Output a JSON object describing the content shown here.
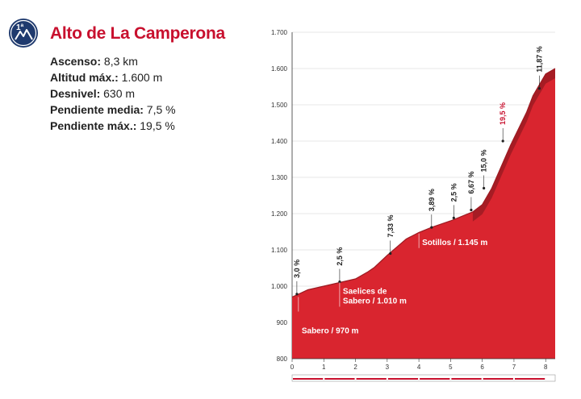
{
  "badge": {
    "text": "1ª",
    "icon": "mountain-icon",
    "color": "#1f3a6e"
  },
  "title": "Alto de La Camperona",
  "stats": [
    {
      "label": "Ascenso:",
      "value": " 8,3 km"
    },
    {
      "label": "Altitud máx.:",
      "value": " 1.600 m"
    },
    {
      "label": "Desnivel:",
      "value": " 630 m"
    },
    {
      "label": "Pendiente media:",
      "value": " 7,5 %"
    },
    {
      "label": "Pendiente máx.:",
      "value": " 19,5 %"
    }
  ],
  "colors": {
    "fill": "#d9252f",
    "dark": "#9c1b22",
    "accent": "#c8102e",
    "text": "#222222"
  },
  "chart_data": {
    "type": "area",
    "x": [
      0,
      0.2,
      0.5,
      1,
      1.5,
      2.0,
      2.4,
      2.6,
      3,
      3.6,
      4.0,
      4.4,
      5.0,
      5.7,
      6.0,
      6.3,
      6.9,
      7.4,
      7.6,
      8.0,
      8.3
    ],
    "y": [
      970,
      978,
      990,
      1000,
      1010,
      1020,
      1040,
      1052,
      1085,
      1130,
      1148,
      1162,
      1180,
      1205,
      1225,
      1270,
      1390,
      1480,
      1525,
      1585,
      1600
    ],
    "ylim": [
      800,
      1700
    ],
    "yticks": [
      "800",
      "900",
      "1.000",
      "1.100",
      "1.200",
      "1.300",
      "1.400",
      "1.500",
      "1.600",
      "1.700"
    ],
    "ytick_values": [
      800,
      900,
      1000,
      1100,
      1200,
      1300,
      1400,
      1500,
      1600,
      1700
    ],
    "xticks": [
      "0",
      "1",
      "2",
      "3",
      "4",
      "5",
      "6",
      "7",
      "8"
    ],
    "xlim": [
      0,
      8.3
    ],
    "grid": true,
    "gradients": [
      {
        "label": "3,0 %",
        "x": 0.15,
        "y": 978,
        "red": false
      },
      {
        "label": "2,5 %",
        "x": 1.5,
        "y": 1012,
        "red": false
      },
      {
        "label": "7,33 %",
        "x": 3.1,
        "y": 1090,
        "red": false
      },
      {
        "label": "3,89 %",
        "x": 4.4,
        "y": 1162,
        "red": false
      },
      {
        "label": "2,5 %",
        "x": 5.1,
        "y": 1188,
        "red": false
      },
      {
        "label": "6,67 %",
        "x": 5.65,
        "y": 1210,
        "red": false
      },
      {
        "label": "15,0 %",
        "x": 6.05,
        "y": 1270,
        "red": false
      },
      {
        "label": "19,5 %",
        "x": 6.65,
        "y": 1400,
        "red": true
      },
      {
        "label": "11,87 %",
        "x": 7.8,
        "y": 1545,
        "red": false
      }
    ],
    "places": [
      {
        "lines": [
          "Sabero / 970 m"
        ],
        "x": 0.2,
        "y": 970
      },
      {
        "lines": [
          "Saelices de",
          "Sabero / 1.010 m"
        ],
        "x": 1.5,
        "y": 1010
      },
      {
        "lines": [
          "Sotillos / 1.145 m"
        ],
        "x": 4.0,
        "y": 1145
      }
    ]
  }
}
